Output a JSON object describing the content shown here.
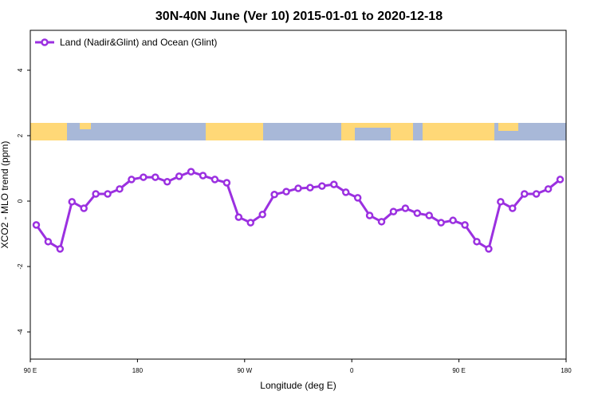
{
  "chart_data": {
    "type": "line",
    "title": "30N-40N June (Ver 10)   2015-01-01 to 2020-12-18",
    "x_label": "Longitude (deg E)",
    "y_label": "XCO2 - MLO trend (ppm)",
    "x": [
      95,
      105,
      115,
      125,
      135,
      145,
      155,
      165,
      175,
      185,
      195,
      205,
      215,
      225,
      235,
      245,
      255,
      265,
      275,
      285,
      295,
      305,
      315,
      325,
      335,
      345,
      355,
      365,
      375,
      385,
      395,
      405,
      415,
      425,
      435,
      445,
      455,
      465,
      475,
      485,
      495,
      505,
      515,
      525,
      535
    ],
    "series": [
      {
        "name": "Land (Nadir&Glint) and Ocean (Glint)",
        "color": "#9b30e0",
        "values": [
          -0.73,
          -1.24,
          -1.46,
          -0.02,
          -0.22,
          0.22,
          0.22,
          0.37,
          0.66,
          0.73,
          0.73,
          0.59,
          0.76,
          0.9,
          0.78,
          0.66,
          0.56,
          -0.49,
          -0.66,
          -0.41,
          0.2,
          0.29,
          0.39,
          0.41,
          0.46,
          0.51,
          0.27,
          0.1,
          -0.44,
          -0.63,
          -0.32,
          -0.22,
          -0.37,
          -0.44,
          -0.66,
          -0.59,
          -0.73,
          -1.24,
          -1.46,
          -0.02,
          -0.22,
          0.22,
          0.22,
          0.37,
          0.66
        ]
      }
    ],
    "xlim": [
      90,
      540
    ],
    "xticks": [
      {
        "value": 90,
        "label": "90 E"
      },
      180,
      {
        "value": 270,
        "label": "90 W"
      },
      {
        "value": 360,
        "label": "0"
      },
      {
        "value": 450,
        "label": "90 E"
      },
      {
        "value": 540,
        "label": "180"
      }
    ],
    "ylim": [
      -4.83,
      5.22
    ],
    "yticks": [
      -4,
      -2,
      0,
      2,
      4
    ],
    "legend": "top-left"
  }
}
